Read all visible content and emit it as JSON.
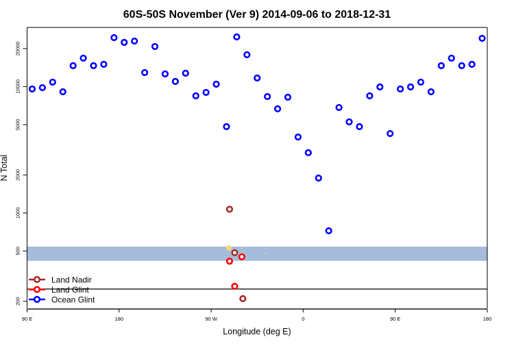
{
  "chart_data": {
    "type": "scatter",
    "title": "60S-50S November (Ver 9)   2014-09-06 to 2018-12-31",
    "xlabel": "Longitude (deg E)",
    "ylabel": "N Total",
    "y_scale": "log",
    "xlim": [
      90,
      540
    ],
    "ylim": [
      176,
      29400
    ],
    "x_ticks": [
      {
        "value": 90,
        "label": "90 E"
      },
      {
        "value": 180,
        "label": "180"
      },
      {
        "value": 270,
        "label": "90 W"
      },
      {
        "value": 360,
        "label": "0"
      },
      {
        "value": 450,
        "label": "90 E"
      },
      {
        "value": 540,
        "label": "180"
      }
    ],
    "y_ticks": [
      {
        "value": 200,
        "label": "200"
      },
      {
        "value": 500,
        "label": "500"
      },
      {
        "value": 1000,
        "label": "1000"
      },
      {
        "value": 2000,
        "label": "2000"
      },
      {
        "value": 5000,
        "label": "5000"
      },
      {
        "value": 10000,
        "label": "10000"
      },
      {
        "value": 20000,
        "label": "20000"
      }
    ],
    "shaded_band": {
      "y_from": 418,
      "y_to": 542,
      "color": "#a6bcdc"
    },
    "reference_line": {
      "y": 250,
      "color": "#000000"
    },
    "grid": false,
    "legend_position": "bottom-left",
    "series": [
      {
        "name": "Land Nadir",
        "color": "#a52a2a",
        "points": [
          [
            288,
            1070
          ],
          [
            293,
            485
          ],
          [
            301,
            210
          ]
        ]
      },
      {
        "name": "Land Glint",
        "color": "#ff0000",
        "points": [
          [
            288,
            415
          ],
          [
            300,
            450
          ],
          [
            293,
            263
          ]
        ]
      },
      {
        "name": "Ocean Glint",
        "color": "#0000ff",
        "points": [
          [
            95,
            9570
          ],
          [
            105,
            9810
          ],
          [
            115,
            10850
          ],
          [
            125,
            9100
          ],
          [
            135,
            14630
          ],
          [
            145,
            16790
          ],
          [
            155,
            14630
          ],
          [
            165,
            15000
          ],
          [
            175,
            24400
          ],
          [
            185,
            22370
          ],
          [
            195,
            22920
          ],
          [
            205,
            12910
          ],
          [
            215,
            20750
          ],
          [
            225,
            12600
          ],
          [
            235,
            10990
          ],
          [
            245,
            12760
          ],
          [
            255,
            8450
          ],
          [
            265,
            8990
          ],
          [
            275,
            10450
          ],
          [
            285,
            4820
          ],
          [
            295,
            24720
          ],
          [
            305,
            17860
          ],
          [
            315,
            11690
          ],
          [
            325,
            8340
          ],
          [
            335,
            6670
          ],
          [
            345,
            8240
          ],
          [
            355,
            3990
          ],
          [
            365,
            3000
          ],
          [
            375,
            1890
          ],
          [
            385,
            723
          ],
          [
            395,
            6830
          ],
          [
            405,
            5260
          ],
          [
            415,
            4820
          ],
          [
            425,
            8450
          ],
          [
            435,
            9940
          ],
          [
            445,
            4250
          ],
          [
            455,
            9570
          ],
          [
            465,
            9940
          ],
          [
            475,
            10850
          ],
          [
            485,
            9100
          ],
          [
            495,
            14630
          ],
          [
            505,
            16790
          ],
          [
            515,
            14630
          ],
          [
            525,
            15000
          ],
          [
            535,
            24100
          ]
        ]
      }
    ]
  }
}
